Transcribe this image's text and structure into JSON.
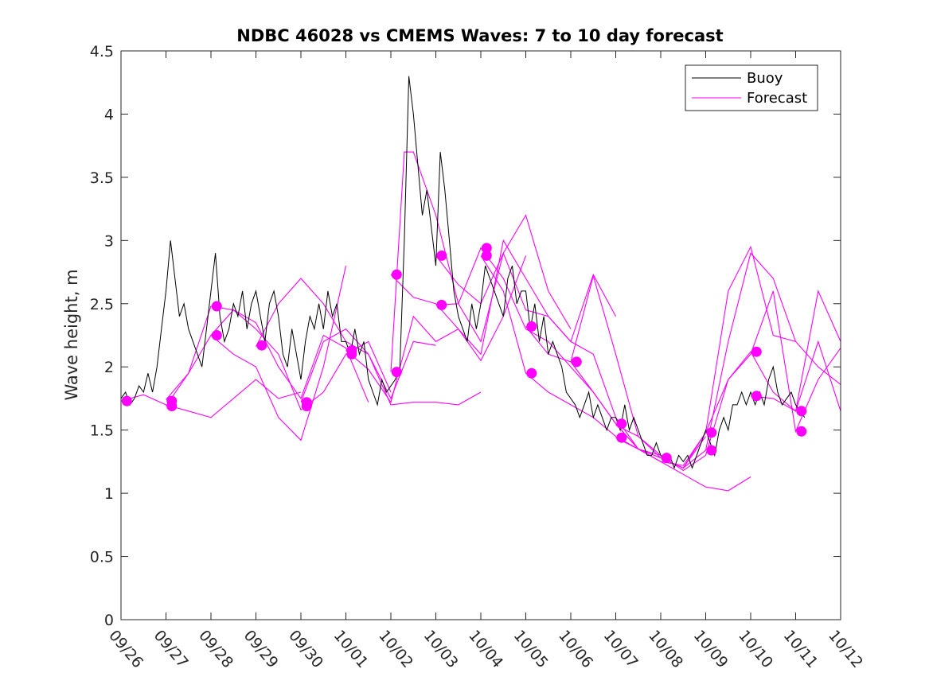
{
  "chart_data": {
    "type": "line",
    "title": "NDBC 46028 vs CMEMS Waves: 7 to 10 day forecast",
    "xlabel": "",
    "ylabel": "Wave height, m",
    "xlim": [
      0,
      16
    ],
    "ylim": [
      0,
      4.5
    ],
    "x_unit": "days since 09/26 00:00",
    "xticks": [
      0,
      1,
      2,
      3,
      4,
      5,
      6,
      7,
      8,
      9,
      10,
      11,
      12,
      13,
      14,
      15,
      16
    ],
    "xtick_labels": [
      "09/26",
      "09/27",
      "09/28",
      "09/29",
      "09/30",
      "10/01",
      "10/02",
      "10/03",
      "10/04",
      "10/05",
      "10/06",
      "10/07",
      "10/08",
      "10/09",
      "10/10",
      "10/11",
      "10/12"
    ],
    "yticks": [
      0,
      0.5,
      1,
      1.5,
      2,
      2.5,
      3,
      3.5,
      4,
      4.5
    ],
    "ytick_labels": [
      "0",
      "0.5",
      "1",
      "1.5",
      "2",
      "2.5",
      "3",
      "3.5",
      "4",
      "4.5"
    ],
    "grid": false,
    "legend": {
      "position": "top-right",
      "entries": [
        {
          "label": "Buoy",
          "color": "#000000"
        },
        {
          "label": "Forecast",
          "color": "#ff00ff"
        }
      ]
    },
    "colors": {
      "buoy": "#000000",
      "forecast": "#ff00ff",
      "axis": "#262626"
    },
    "buoy": {
      "name": "Buoy",
      "x": [
        0.0,
        0.1,
        0.2,
        0.3,
        0.4,
        0.5,
        0.6,
        0.7,
        0.8,
        0.9,
        1.0,
        1.1,
        1.2,
        1.3,
        1.4,
        1.5,
        1.6,
        1.7,
        1.8,
        1.9,
        2.0,
        2.1,
        2.2,
        2.3,
        2.4,
        2.5,
        2.6,
        2.7,
        2.8,
        2.9,
        3.0,
        3.1,
        3.2,
        3.3,
        3.4,
        3.5,
        3.6,
        3.7,
        3.8,
        3.9,
        4.0,
        4.1,
        4.2,
        4.3,
        4.4,
        4.5,
        4.6,
        4.7,
        4.8,
        4.9,
        5.0,
        5.1,
        5.2,
        5.3,
        5.4,
        5.5,
        5.6,
        5.7,
        5.8,
        5.9,
        6.0,
        6.1,
        6.2,
        6.3,
        6.4,
        6.5,
        6.6,
        6.7,
        6.8,
        6.9,
        7.0,
        7.1,
        7.2,
        7.3,
        7.4,
        7.5,
        7.6,
        7.7,
        7.8,
        7.9,
        8.0,
        8.1,
        8.2,
        8.3,
        8.4,
        8.5,
        8.6,
        8.7,
        8.8,
        8.9,
        9.0,
        9.1,
        9.2,
        9.3,
        9.4,
        9.5,
        9.6,
        9.7,
        9.8,
        9.9,
        10.0,
        10.1,
        10.2,
        10.3,
        10.4,
        10.5,
        10.6,
        10.7,
        10.8,
        10.9,
        11.0,
        11.1,
        11.2,
        11.3,
        11.4,
        11.5,
        11.6,
        11.7,
        11.8,
        11.9,
        12.0,
        12.1,
        12.2,
        12.3,
        12.4,
        12.5,
        12.6,
        12.7,
        12.8,
        12.9,
        13.0,
        13.1,
        13.2,
        13.3,
        13.4,
        13.5,
        13.6,
        13.7,
        13.8,
        13.9,
        14.0,
        14.1,
        14.2,
        14.3,
        14.4,
        14.5,
        14.6,
        14.7,
        14.8,
        14.9,
        15.0,
        15.1,
        15.2
      ],
      "values": [
        1.75,
        1.8,
        1.7,
        1.75,
        1.85,
        1.8,
        1.95,
        1.8,
        2.0,
        2.3,
        2.6,
        3.0,
        2.7,
        2.4,
        2.5,
        2.3,
        2.2,
        2.1,
        2.0,
        2.3,
        2.6,
        2.9,
        2.4,
        2.2,
        2.3,
        2.5,
        2.4,
        2.6,
        2.3,
        2.5,
        2.6,
        2.4,
        2.2,
        2.5,
        2.6,
        2.4,
        2.1,
        2.0,
        2.3,
        2.1,
        1.9,
        2.2,
        2.4,
        2.3,
        2.5,
        2.3,
        2.6,
        2.4,
        2.5,
        2.2,
        2.2,
        2.1,
        2.3,
        2.1,
        2.2,
        1.9,
        1.8,
        1.7,
        1.9,
        1.8,
        1.85,
        1.9,
        2.0,
        3.0,
        4.3,
        4.0,
        3.6,
        3.2,
        3.4,
        3.1,
        2.8,
        3.7,
        3.4,
        3.0,
        2.6,
        2.4,
        2.3,
        2.2,
        2.5,
        2.3,
        2.5,
        2.8,
        2.7,
        2.6,
        2.5,
        2.4,
        2.7,
        2.8,
        2.5,
        2.6,
        2.6,
        2.3,
        2.5,
        2.2,
        2.4,
        2.1,
        2.2,
        2.1,
        2.0,
        1.8,
        1.75,
        1.7,
        1.6,
        1.7,
        1.8,
        1.6,
        1.7,
        1.6,
        1.5,
        1.6,
        1.6,
        1.5,
        1.7,
        1.5,
        1.6,
        1.5,
        1.4,
        1.3,
        1.3,
        1.4,
        1.3,
        1.25,
        1.3,
        1.2,
        1.3,
        1.25,
        1.3,
        1.2,
        1.3,
        1.4,
        1.5,
        1.4,
        1.3,
        1.5,
        1.6,
        1.5,
        1.7,
        1.7,
        1.8,
        1.7,
        1.8,
        1.7,
        1.8,
        1.7,
        1.9,
        2.0,
        1.8,
        1.7,
        1.75,
        1.8,
        1.7,
        1.65,
        1.6
      ]
    },
    "forecast_series": [
      {
        "name": "Forecast",
        "x": [
          0.0,
          0.5,
          1.0,
          1.5,
          2.0,
          2.5,
          3.0,
          3.5,
          4.0
        ],
        "values": [
          1.73,
          1.78,
          1.7,
          1.65,
          1.6,
          1.75,
          1.9,
          1.75,
          1.8
        ]
      },
      {
        "name": "Forecast",
        "x": [
          1.0,
          1.5,
          2.0,
          2.5,
          3.0,
          3.5,
          4.0,
          4.5,
          5.0
        ],
        "values": [
          1.74,
          1.95,
          2.25,
          2.1,
          2.0,
          1.6,
          1.42,
          2.0,
          2.8
        ]
      },
      {
        "name": "Forecast",
        "x": [
          1.0,
          1.5,
          2.0,
          2.5,
          3.0,
          3.5,
          4.0,
          4.5,
          5.0,
          5.5
        ],
        "values": [
          1.69,
          1.95,
          2.48,
          2.45,
          2.35,
          2.0,
          1.75,
          2.25,
          2.15,
          1.72
        ]
      },
      {
        "name": "Forecast",
        "x": [
          2.0,
          2.5,
          3.0,
          3.5,
          4.0,
          4.5,
          5.0,
          5.5,
          6.0
        ],
        "values": [
          2.25,
          2.45,
          2.3,
          2.1,
          1.66,
          1.8,
          2.1,
          2.2,
          1.8
        ]
      },
      {
        "name": "Forecast",
        "x": [
          3.0,
          3.5,
          4.0,
          4.5,
          5.0,
          5.5,
          6.0,
          6.5,
          7.0
        ],
        "values": [
          2.16,
          2.5,
          2.7,
          2.5,
          2.2,
          2.1,
          1.75,
          2.2,
          2.17
        ]
      },
      {
        "name": "Forecast",
        "x": [
          4.0,
          4.5,
          5.0,
          5.5,
          6.0,
          6.5,
          7.0,
          7.5,
          8.0
        ],
        "values": [
          1.72,
          2.2,
          2.3,
          2.1,
          1.7,
          1.72,
          1.72,
          1.7,
          1.8
        ]
      },
      {
        "name": "Forecast",
        "x": [
          5.0,
          5.5,
          6.0,
          6.5,
          7.0,
          7.5,
          8.0,
          8.5,
          9.0
        ],
        "values": [
          2.13,
          1.98,
          1.72,
          2.4,
          2.2,
          2.3,
          2.05,
          2.4,
          2.88
        ]
      },
      {
        "name": "Forecast",
        "x": [
          6.0,
          6.3,
          6.5,
          7.0,
          7.5,
          8.0,
          8.5,
          9.0,
          9.5,
          10.0
        ],
        "values": [
          1.96,
          3.7,
          3.7,
          3.2,
          2.5,
          2.2,
          2.9,
          3.2,
          2.6,
          2.3
        ]
      },
      {
        "name": "Forecast",
        "x": [
          6.0,
          6.5,
          7.0,
          7.5,
          8.0,
          8.5,
          9.0,
          9.5,
          10.0,
          10.5,
          11.0
        ],
        "values": [
          2.73,
          2.55,
          2.5,
          2.3,
          2.1,
          3.0,
          2.7,
          2.4,
          2.2,
          2.73,
          2.4
        ]
      },
      {
        "name": "Forecast",
        "x": [
          7.0,
          7.5,
          8.0,
          8.5,
          9.0,
          9.5,
          10.0,
          10.5,
          11.0,
          11.5,
          12.0
        ],
        "values": [
          2.88,
          2.65,
          2.5,
          2.9,
          2.45,
          2.4,
          2.2,
          2.1,
          1.6,
          1.35,
          1.3
        ]
      },
      {
        "name": "Forecast",
        "x": [
          7.0,
          7.5,
          8.0,
          8.5,
          9.0,
          9.5,
          10.0,
          10.5,
          11.0,
          11.5,
          12.0,
          12.5,
          13.0
        ],
        "values": [
          2.49,
          2.5,
          2.94,
          2.7,
          2.3,
          2.2,
          2.0,
          1.8,
          1.55,
          1.35,
          1.28,
          1.2,
          1.45
        ]
      },
      {
        "name": "Forecast",
        "x": [
          8.0,
          8.5,
          9.0,
          9.5,
          10.0,
          10.5,
          11.0,
          11.5,
          12.0,
          12.5,
          13.0,
          13.5,
          14.0
        ],
        "values": [
          2.88,
          2.6,
          1.95,
          1.8,
          1.7,
          1.6,
          1.45,
          1.35,
          1.25,
          1.15,
          1.05,
          1.02,
          1.13
        ]
      },
      {
        "name": "Forecast",
        "x": [
          9.0,
          9.5,
          10.0,
          10.5,
          11.0,
          11.5,
          12.0,
          12.5,
          13.0,
          13.5,
          14.0,
          14.5,
          15.0
        ],
        "values": [
          2.32,
          2.1,
          2.04,
          1.8,
          1.55,
          1.35,
          1.28,
          1.2,
          1.48,
          2.6,
          2.95,
          2.25,
          2.2
        ]
      },
      {
        "name": "Forecast",
        "x": [
          10.0,
          10.5,
          11.0,
          11.5,
          12.0,
          12.5,
          13.0,
          13.5,
          14.0,
          14.5,
          15.0,
          15.5,
          16.0
        ],
        "values": [
          2.04,
          2.72,
          2.1,
          1.45,
          1.28,
          1.2,
          1.34,
          2.2,
          2.9,
          2.7,
          2.2,
          2.0,
          1.86
        ]
      },
      {
        "name": "Forecast",
        "x": [
          11.0,
          11.5,
          12.0,
          12.5,
          13.0,
          13.5,
          14.0,
          14.5,
          15.0,
          15.5,
          16.0
        ],
        "values": [
          1.54,
          1.45,
          1.3,
          1.18,
          1.3,
          1.9,
          2.1,
          2.6,
          1.49,
          1.9,
          2.15
        ]
      },
      {
        "name": "Forecast",
        "x": [
          11.0,
          11.5,
          12.0,
          12.5,
          13.0,
          13.5,
          14.0,
          14.5,
          15.0,
          15.5,
          16.0
        ],
        "values": [
          1.44,
          1.35,
          1.25,
          1.22,
          1.48,
          1.9,
          2.12,
          1.8,
          1.65,
          2.6,
          2.2
        ]
      },
      {
        "name": "Forecast",
        "x": [
          14.0,
          14.5,
          15.0,
          15.5,
          16.0
        ],
        "values": [
          1.77,
          1.75,
          1.65,
          2.2,
          1.65
        ]
      }
    ],
    "forecast_start_markers": {
      "x": [
        0.13,
        1.13,
        1.13,
        2.13,
        2.13,
        3.13,
        4.13,
        4.13,
        5.13,
        5.13,
        6.13,
        6.13,
        7.13,
        7.13,
        8.13,
        8.13,
        9.13,
        9.13,
        10.13,
        11.13,
        11.13,
        12.13,
        13.13,
        13.13,
        14.13,
        14.13,
        15.13,
        15.13
      ],
      "values": [
        1.73,
        1.73,
        1.69,
        2.48,
        2.25,
        2.17,
        1.72,
        1.69,
        2.13,
        2.1,
        2.73,
        1.96,
        2.88,
        2.49,
        2.94,
        2.88,
        2.32,
        1.95,
        2.04,
        1.55,
        1.44,
        1.28,
        1.48,
        1.34,
        2.12,
        1.77,
        1.65,
        1.49
      ]
    }
  }
}
